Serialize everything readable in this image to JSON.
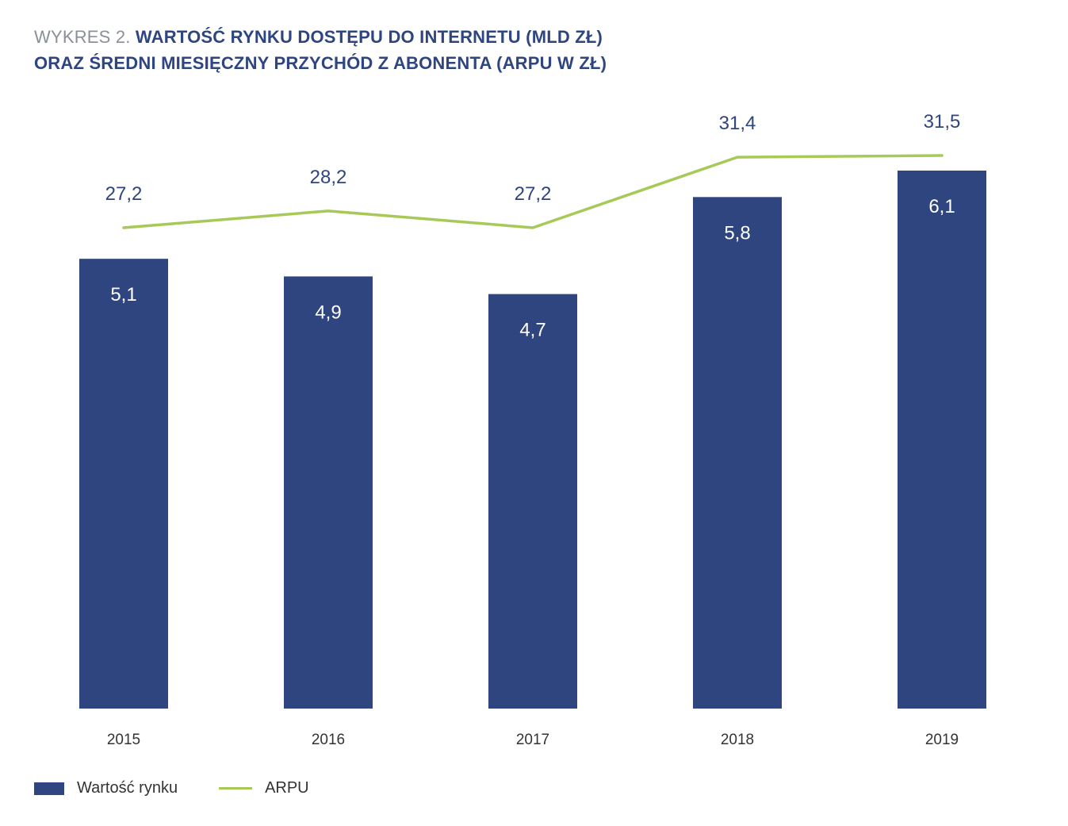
{
  "title": {
    "prefix": "WYKRES 2.",
    "line1": "WARTOŚĆ RYNKU DOSTĘPU DO INTERNETU (MLD ZŁ)",
    "line2": "ORAZ ŚREDNI MIESIĘCZNY PRZYCHÓD Z ABONENTA (ARPU W ZŁ)"
  },
  "colors": {
    "bar": "#2e4580",
    "line": "#a7c957",
    "bar_label": "#ffffff",
    "line_label": "#2e4580",
    "axis_label": "#333333"
  },
  "chart_data": {
    "type": "bar",
    "categories": [
      "2015",
      "2016",
      "2017",
      "2018",
      "2019"
    ],
    "series": [
      {
        "name": "Wartość rynku",
        "type": "bar",
        "values": [
          5.1,
          4.9,
          4.7,
          5.8,
          6.1
        ],
        "labels": [
          "5,1",
          "4,9",
          "4,7",
          "5,8",
          "6,1"
        ]
      },
      {
        "name": "ARPU",
        "type": "line",
        "values": [
          27.2,
          28.2,
          27.2,
          31.4,
          31.5
        ],
        "labels": [
          "27,2",
          "28,2",
          "27,2",
          "31,4",
          "31,5"
        ]
      }
    ],
    "bar_axis_range": [
      0,
      6.1
    ],
    "line_axis_range": [
      18,
      36
    ],
    "grid": false,
    "legend_position": "bottom-left"
  },
  "legend": {
    "items": [
      {
        "label": "Wartość rynku",
        "kind": "bar"
      },
      {
        "label": "ARPU",
        "kind": "line"
      }
    ]
  }
}
